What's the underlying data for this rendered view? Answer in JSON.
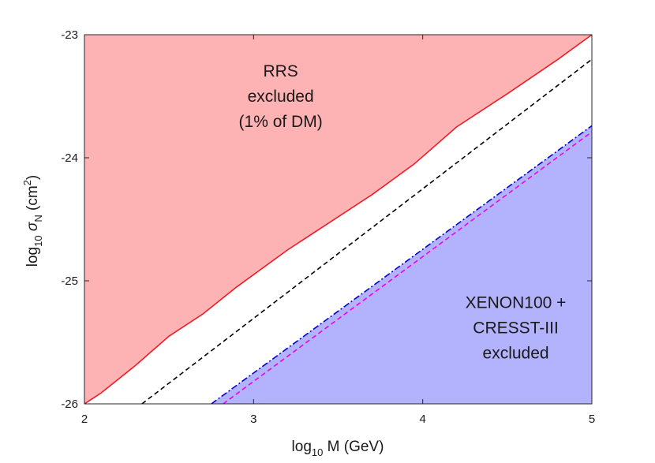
{
  "chart_data": {
    "type": "line",
    "title": "",
    "xlabel": {
      "base": "log",
      "sub": "10",
      "rest": " M (GeV)"
    },
    "ylabel": {
      "base": "log",
      "sub": "10",
      "sym": " σ",
      "symsub": "N",
      "rest1": " (cm",
      "sup": "2",
      "rest2": ")"
    },
    "xlim": [
      2,
      5
    ],
    "ylim": [
      -26,
      -23
    ],
    "xticks": [
      2,
      3,
      4,
      5
    ],
    "yticks": [
      -26,
      -25,
      -24,
      -23
    ],
    "grid": false,
    "regions": [
      {
        "name": "RRS excluded (1% of DM)",
        "color": "#fdb2b4",
        "type": "above",
        "boundary": "rrs",
        "label_lines": [
          "RRS",
          "excluded",
          "(1% of DM)"
        ],
        "label_pos": [
          3.16,
          -23.5
        ]
      },
      {
        "name": "XENON100 + CRESST-III excluded",
        "color": "#b2b2fd",
        "type": "below",
        "boundary": "xenon",
        "label_lines": [
          "XENON100  +",
          "CRESST-III",
          "excluded"
        ],
        "label_pos": [
          4.55,
          -25.38
        ]
      }
    ],
    "series": [
      {
        "name": "rrs",
        "color": "#ee1c24",
        "dash": "solid",
        "x": [
          2.0,
          2.1,
          2.3,
          2.5,
          2.7,
          2.9,
          3.2,
          3.4,
          3.7,
          3.95,
          4.2,
          4.5,
          4.8,
          5.0
        ],
        "y": [
          -26.0,
          -25.91,
          -25.69,
          -25.45,
          -25.27,
          -25.05,
          -24.75,
          -24.57,
          -24.3,
          -24.05,
          -23.75,
          -23.48,
          -23.2,
          -23.0
        ]
      },
      {
        "name": "black-dashed",
        "color": "#000000",
        "dash": "dashed",
        "x": [
          2.34,
          5.0
        ],
        "y": [
          -26.0,
          -23.2
        ]
      },
      {
        "name": "xenon",
        "color": "#0000e0",
        "dash": "dashdot",
        "x": [
          2.75,
          5.0
        ],
        "y": [
          -26.0,
          -23.74
        ]
      },
      {
        "name": "magenta-dashed",
        "color": "#ee00ee",
        "dash": "dashed",
        "x": [
          2.82,
          5.0
        ],
        "y": [
          -26.0,
          -23.79
        ]
      }
    ]
  }
}
